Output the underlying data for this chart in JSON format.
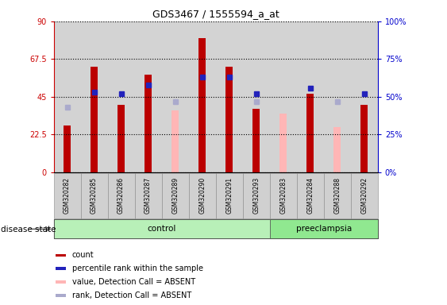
{
  "title": "GDS3467 / 1555594_a_at",
  "samples": [
    "GSM320282",
    "GSM320285",
    "GSM320286",
    "GSM320287",
    "GSM320289",
    "GSM320290",
    "GSM320291",
    "GSM320293",
    "GSM320283",
    "GSM320284",
    "GSM320288",
    "GSM320292"
  ],
  "groups": [
    "control",
    "control",
    "control",
    "control",
    "control",
    "control",
    "control",
    "control",
    "preeclampsia",
    "preeclampsia",
    "preeclampsia",
    "preeclampsia"
  ],
  "count_red": [
    28,
    63,
    40,
    58,
    0,
    80,
    63,
    38,
    0,
    47,
    0,
    40
  ],
  "value_absent_pink": [
    28,
    0,
    0,
    0,
    37,
    0,
    0,
    0,
    35,
    0,
    27,
    0
  ],
  "percentile_blue": [
    0,
    53,
    52,
    58,
    0,
    63,
    63,
    52,
    0,
    56,
    0,
    52
  ],
  "rank_absent_lblue": [
    43,
    0,
    0,
    0,
    47,
    0,
    0,
    47,
    0,
    0,
    47,
    0
  ],
  "ylim_left": [
    0,
    90
  ],
  "ylim_right": [
    0,
    100
  ],
  "yticks_left": [
    0,
    22.5,
    45,
    67.5,
    90
  ],
  "yticks_right": [
    0,
    25,
    50,
    75,
    100
  ],
  "ytick_labels_left": [
    "0",
    "22.5",
    "45",
    "67.5",
    "90"
  ],
  "ytick_labels_right": [
    "0%",
    "25%",
    "50%",
    "75%",
    "100%"
  ],
  "left_axis_color": "#cc0000",
  "right_axis_color": "#0000cc",
  "bar_width": 0.25,
  "color_red": "#bb0000",
  "color_pink": "#ffb6b6",
  "color_blue": "#2222bb",
  "color_lblue": "#aaaacc",
  "col_bg_color": "#d3d3d3",
  "plot_bg_color": "#ffffff",
  "group_colors": {
    "control": "#b8f0b8",
    "preeclampsia": "#90e890"
  },
  "disease_state_label": "disease state",
  "legend_items": [
    {
      "label": "count",
      "color": "#bb0000"
    },
    {
      "label": "percentile rank within the sample",
      "color": "#2222bb"
    },
    {
      "label": "value, Detection Call = ABSENT",
      "color": "#ffb6b6"
    },
    {
      "label": "rank, Detection Call = ABSENT",
      "color": "#aaaacc"
    }
  ]
}
